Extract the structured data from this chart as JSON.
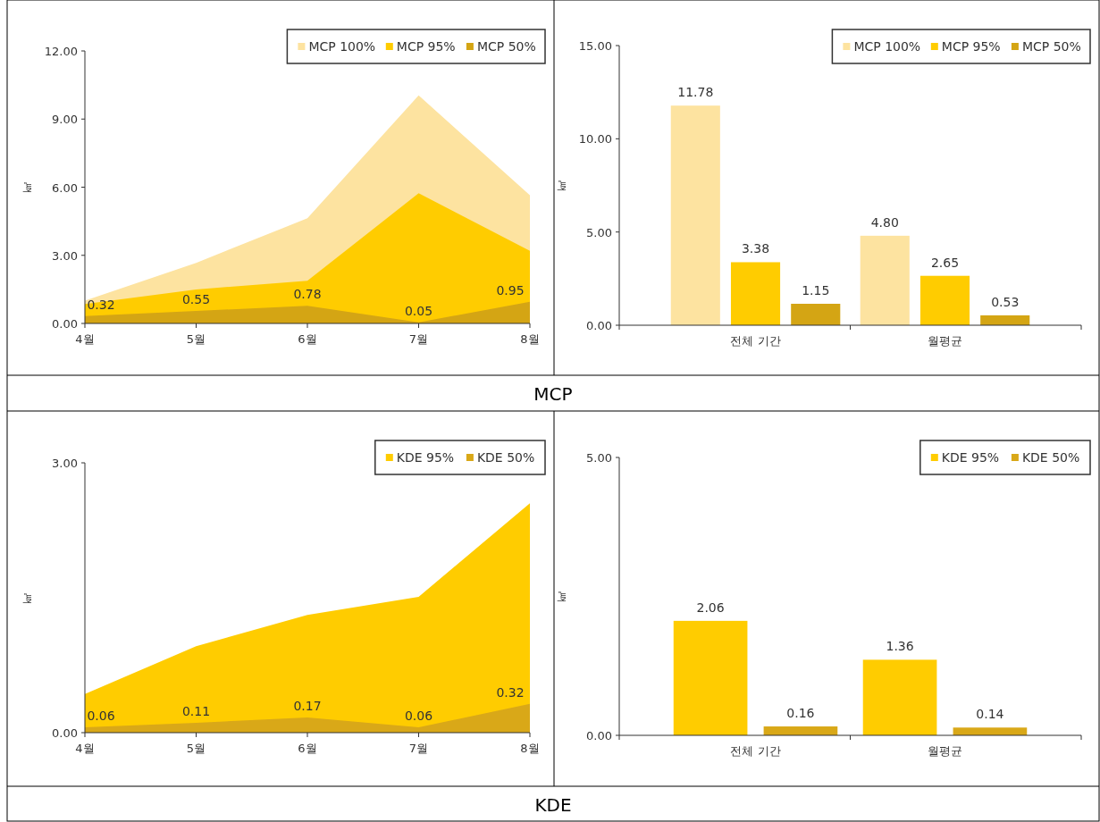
{
  "chart_data": [
    {
      "type": "area",
      "ylabel": "㎢",
      "categories": [
        "4월",
        "5월",
        "6월",
        "7월",
        "8월"
      ],
      "ylim": [
        0,
        12
      ],
      "yticks": [
        {
          "value": 0,
          "label": "0.00"
        },
        {
          "value": 3,
          "label": "3.00"
        },
        {
          "value": 6,
          "label": "6.00"
        },
        {
          "value": 9,
          "label": "9.00"
        },
        {
          "value": 12,
          "label": "12.00"
        }
      ],
      "legend": "top right",
      "series": [
        {
          "name": "MCP 100%",
          "color": "#fde3a0",
          "values": [
            1.0,
            2.67,
            4.63,
            10.04,
            5.65
          ]
        },
        {
          "name": "MCP 95%",
          "color": "#ffcc00",
          "values": [
            0.86,
            1.5,
            1.88,
            5.73,
            3.2
          ]
        },
        {
          "name": "MCP 50%",
          "color": "#d4a514",
          "values": [
            0.32,
            0.55,
            0.78,
            0.05,
            0.95
          ],
          "value_labels": [
            "0.32",
            "0.55",
            "0.78",
            "0.05",
            "0.95"
          ]
        }
      ]
    },
    {
      "type": "bar",
      "ylabel": "㎢",
      "categories": [
        "전체 기간",
        "월평균"
      ],
      "ylim": [
        0,
        15
      ],
      "yticks": [
        {
          "value": 0,
          "label": "0.00"
        },
        {
          "value": 5,
          "label": "5.00"
        },
        {
          "value": 10,
          "label": "10.00"
        },
        {
          "value": 15,
          "label": "15.00"
        }
      ],
      "legend": "top right",
      "annotations": [
        "MCP"
      ],
      "series": [
        {
          "name": "MCP 100%",
          "color": "#fde3a0",
          "values": [
            11.78,
            4.8
          ],
          "value_labels": [
            "11.78",
            "4.80"
          ]
        },
        {
          "name": "MCP 95%",
          "color": "#ffcc00",
          "values": [
            3.38,
            2.65
          ],
          "value_labels": [
            "3.38",
            "2.65"
          ]
        },
        {
          "name": "MCP 50%",
          "color": "#d4a514",
          "values": [
            1.15,
            0.53
          ],
          "value_labels": [
            "1.15",
            "0.53"
          ]
        }
      ]
    },
    {
      "type": "area",
      "ylabel": "㎢",
      "categories": [
        "4월",
        "5월",
        "6월",
        "7월",
        "8월"
      ],
      "ylim": [
        0,
        3
      ],
      "yticks": [
        {
          "value": 0,
          "label": "0.00"
        },
        {
          "value": 3,
          "label": "3.00"
        }
      ],
      "legend": "top right",
      "series": [
        {
          "name": "KDE 95%",
          "color": "#ffcc00",
          "values": [
            0.43,
            0.96,
            1.31,
            1.51,
            2.55
          ]
        },
        {
          "name": "KDE 50%",
          "color": "#d9a818",
          "values": [
            0.06,
            0.11,
            0.17,
            0.06,
            0.32
          ],
          "value_labels": [
            "0.06",
            "0.11",
            "0.17",
            "0.06",
            "0.32"
          ]
        }
      ]
    },
    {
      "type": "bar",
      "ylabel": "㎢",
      "categories": [
        "전체 기간",
        "월평균"
      ],
      "ylim": [
        0,
        5
      ],
      "yticks": [
        {
          "value": 0,
          "label": "0.00"
        },
        {
          "value": 5,
          "label": "5.00"
        }
      ],
      "legend": "top right",
      "annotations": [
        "KDE"
      ],
      "series": [
        {
          "name": "KDE 95%",
          "color": "#ffcc00",
          "values": [
            2.06,
            1.36
          ],
          "value_labels": [
            "2.06",
            "1.36"
          ]
        },
        {
          "name": "KDE 50%",
          "color": "#d9a818",
          "values": [
            0.16,
            0.14
          ],
          "value_labels": [
            "0.16",
            "0.14"
          ]
        }
      ]
    }
  ]
}
